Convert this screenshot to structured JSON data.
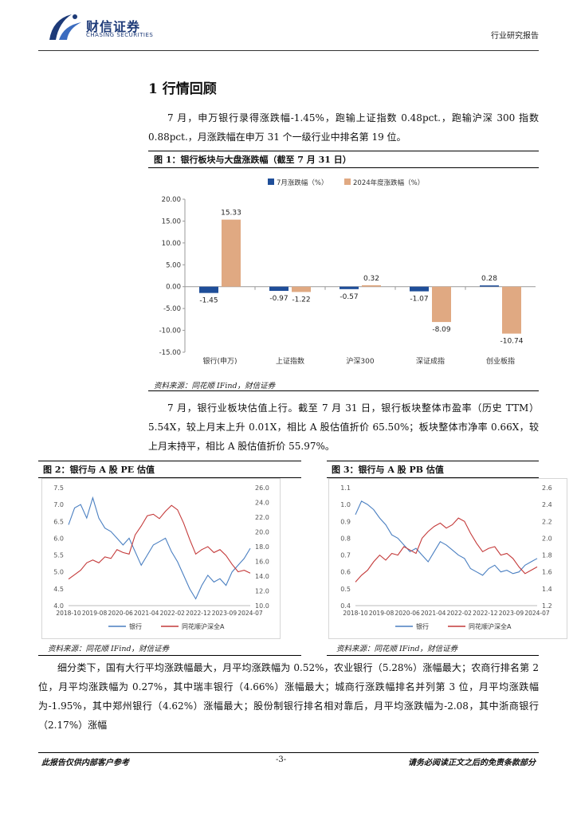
{
  "header": {
    "logo_name": "财信证券",
    "logo_sub": "CHASING SECURITIES",
    "doc_type": "行业研究报告"
  },
  "section": {
    "title": "1 行情回顾"
  },
  "paragraphs": {
    "p1": "7 月，申万银行录得涨跌幅-1.45%，跑输上证指数 0.48pct.，跑输沪深 300 指数 0.88pct.，月涨跌幅在申万 31 个一级行业中排名第 19 位。",
    "p2": "7 月，银行业板块估值上行。截至 7 月 31 日，银行板块整体市盈率（历史 TTM）5.54X，较上月末上升 0.01X，相比 A 股估值折价 65.50%；板块整体市净率 0.66X，较上月末持平，相比 A 股估值折价 55.97%。",
    "p3": "细分类下，国有大行平均涨跌幅最大，月平均涨跌幅为 0.52%，农业银行（5.28%）涨幅最大；农商行排名第 2 位，月平均涨跌幅为 0.27%，其中瑞丰银行（4.66%）涨幅最大；城商行涨跌幅排名并列第 3 位，月平均涨跌幅为-1.95%，其中郑州银行（4.62%）涨幅最大；股份制银行排名相对靠后，月平均涨跌幅为-2.08，其中浙商银行（2.17%）涨幅"
  },
  "figures": {
    "fig1_title": "图 1：银行板块与大盘涨跌幅（截至 7 月 31 日）",
    "fig2_title": "图 2：银行与 A 股 PE 估值",
    "fig3_title": "图 3：银行与 A 股 PB 估值",
    "source": "资料来源：同花顺 IFind，财信证券"
  },
  "chart_data": [
    {
      "type": "bar",
      "categories": [
        "银行(申万)",
        "上证指数",
        "沪深300",
        "深证成指",
        "创业板指"
      ],
      "series": [
        {
          "name": "7月涨跌幅（%）",
          "color": "#1f4e99",
          "values": [
            -1.45,
            -0.97,
            -0.57,
            -1.07,
            0.28
          ]
        },
        {
          "name": "2024年度涨跌幅（%）",
          "color": "#e0a982",
          "values": [
            15.33,
            -1.22,
            0.32,
            -8.09,
            -10.74
          ]
        }
      ],
      "data_labels": [
        [
          "-1.45",
          "15.33"
        ],
        [
          "-0.97",
          "-1.22"
        ],
        [
          "-0.57",
          "0.32"
        ],
        [
          "-1.07",
          "-8.09"
        ],
        [
          "0.28",
          "-10.74"
        ]
      ],
      "ylim": [
        -15,
        20
      ],
      "yticks": [
        "20.00",
        "15.00",
        "10.00",
        "5.00",
        "0.00",
        "-5.00",
        "-10.00",
        "-15.00"
      ],
      "legend": "top-center"
    },
    {
      "type": "line",
      "xticks": [
        "2018-10",
        "2019-08",
        "2020-06",
        "2021-04",
        "2022-02",
        "2022-12",
        "2023-09",
        "2024-07"
      ],
      "ylim_left": [
        4.0,
        7.5
      ],
      "yticks_left": [
        "7.5",
        "7.0",
        "6.5",
        "6.0",
        "5.5",
        "5.0",
        "4.5",
        "4.0"
      ],
      "ylim_right": [
        10.0,
        26.0
      ],
      "yticks_right": [
        "26.0",
        "24.0",
        "22.0",
        "20.0",
        "18.0",
        "16.0",
        "14.0",
        "12.0",
        "10.0"
      ],
      "series": [
        {
          "name": "银行",
          "axis": "left",
          "color": "#4a7fc1",
          "values": [
            6.4,
            6.9,
            7.0,
            6.6,
            7.2,
            6.6,
            6.3,
            6.2,
            6.0,
            5.8,
            6.0,
            5.6,
            5.2,
            5.5,
            5.8,
            5.9,
            6.0,
            5.6,
            5.3,
            4.9,
            4.5,
            4.2,
            4.6,
            4.9,
            4.7,
            4.8,
            4.6,
            5.0,
            5.2,
            5.4,
            5.7
          ]
        },
        {
          "name": "同花顺沪深全A",
          "axis": "right",
          "color": "#c43a3a",
          "values": [
            13.6,
            14.2,
            14.8,
            15.8,
            16.2,
            15.8,
            16.6,
            16.4,
            17.6,
            17.2,
            17.0,
            19.6,
            20.8,
            22.2,
            22.4,
            21.8,
            22.8,
            23.6,
            23.0,
            21.2,
            19.0,
            17.0,
            17.6,
            18.0,
            17.2,
            17.6,
            16.8,
            15.6,
            14.6,
            14.8,
            14.4
          ]
        }
      ],
      "legend": "bottom-center"
    },
    {
      "type": "line",
      "xticks": [
        "2018-10",
        "2019-08",
        "2020-06",
        "2021-04",
        "2022-02",
        "2022-12",
        "2023-09",
        "2024-07"
      ],
      "ylim_left": [
        0.4,
        1.1
      ],
      "yticks_left": [
        "1.1",
        "1.0",
        "0.9",
        "0.8",
        "0.7",
        "0.6",
        "0.5",
        "0.4"
      ],
      "ylim_right": [
        1.2,
        2.6
      ],
      "yticks_right": [
        "2.6",
        "2.4",
        "2.2",
        "2.0",
        "1.8",
        "1.6",
        "1.4",
        "1.2"
      ],
      "series": [
        {
          "name": "银行",
          "axis": "left",
          "color": "#4a7fc1",
          "values": [
            0.94,
            1.02,
            1.0,
            0.97,
            0.92,
            0.88,
            0.82,
            0.8,
            0.76,
            0.72,
            0.74,
            0.7,
            0.66,
            0.72,
            0.78,
            0.76,
            0.73,
            0.7,
            0.68,
            0.62,
            0.6,
            0.58,
            0.62,
            0.64,
            0.6,
            0.61,
            0.59,
            0.6,
            0.64,
            0.66,
            0.68
          ]
        },
        {
          "name": "同花顺沪深全A",
          "axis": "right",
          "color": "#c43a3a",
          "values": [
            1.48,
            1.56,
            1.62,
            1.72,
            1.8,
            1.74,
            1.82,
            1.8,
            1.9,
            1.86,
            1.82,
            2.0,
            2.08,
            2.14,
            2.18,
            2.12,
            2.16,
            2.24,
            2.2,
            2.06,
            1.94,
            1.84,
            1.88,
            1.9,
            1.8,
            1.82,
            1.76,
            1.66,
            1.58,
            1.62,
            1.66
          ]
        }
      ],
      "legend": "bottom-center"
    }
  ],
  "footer": {
    "left": "此报告仅供内部客户参考",
    "page": "-3-",
    "right": "请务必阅读正文之后的免责条款部分"
  }
}
